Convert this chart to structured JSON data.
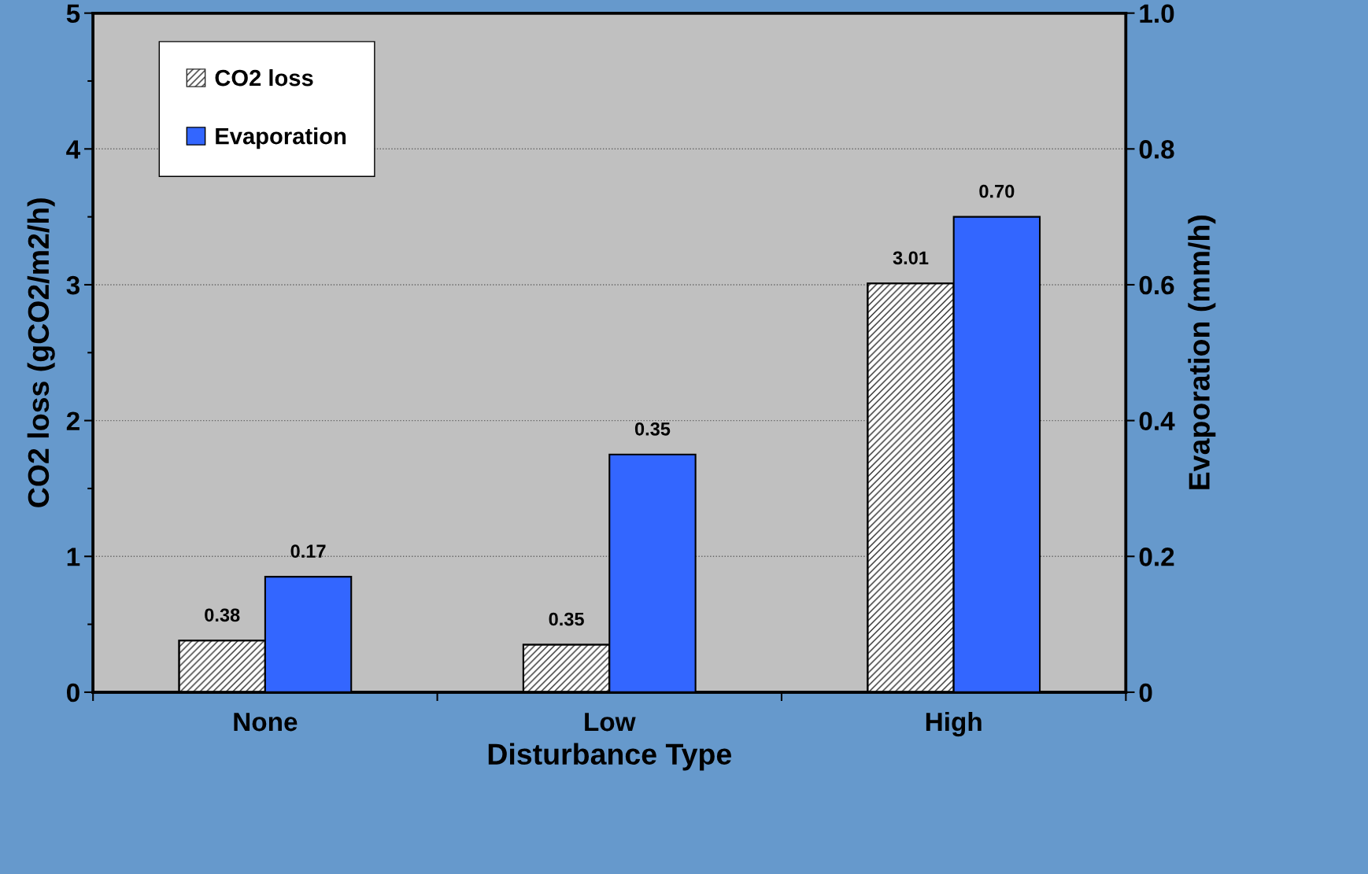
{
  "chart_data": {
    "type": "bar",
    "xlabel": "Disturbance Type",
    "ylabel": "CO2 loss (gCO2/m2/h)",
    "y2label": "Evaporation (mm/h)",
    "categories": [
      "None",
      "Low",
      "High"
    ],
    "series": [
      {
        "name": "CO2 loss",
        "color": "#2b2b2b",
        "values": [
          0.38,
          0.35,
          3.01
        ],
        "value_labels": [
          "0.38",
          "0.35",
          "3.01"
        ]
      },
      {
        "name": "Evaporation",
        "color": "#3366ff",
        "axis": "y2",
        "values": [
          0.17,
          0.35,
          0.7
        ],
        "value_labels": [
          "0.17",
          "0.35",
          "0.70"
        ]
      }
    ],
    "ylim": [
      0,
      5
    ],
    "yticks": [
      0,
      1,
      2,
      3,
      4,
      5
    ],
    "y2lim": [
      0,
      1.0
    ],
    "y2ticks": [
      0,
      {
        "value": 0.2,
        "label": "0.2"
      },
      {
        "value": 0.4,
        "label": "0.4"
      },
      {
        "value": 0.6,
        "label": "0.6"
      },
      {
        "value": 0.8,
        "label": "0.8"
      },
      {
        "value": 1.0,
        "label": "1.0"
      }
    ],
    "grid": "y",
    "legend": "top left"
  }
}
